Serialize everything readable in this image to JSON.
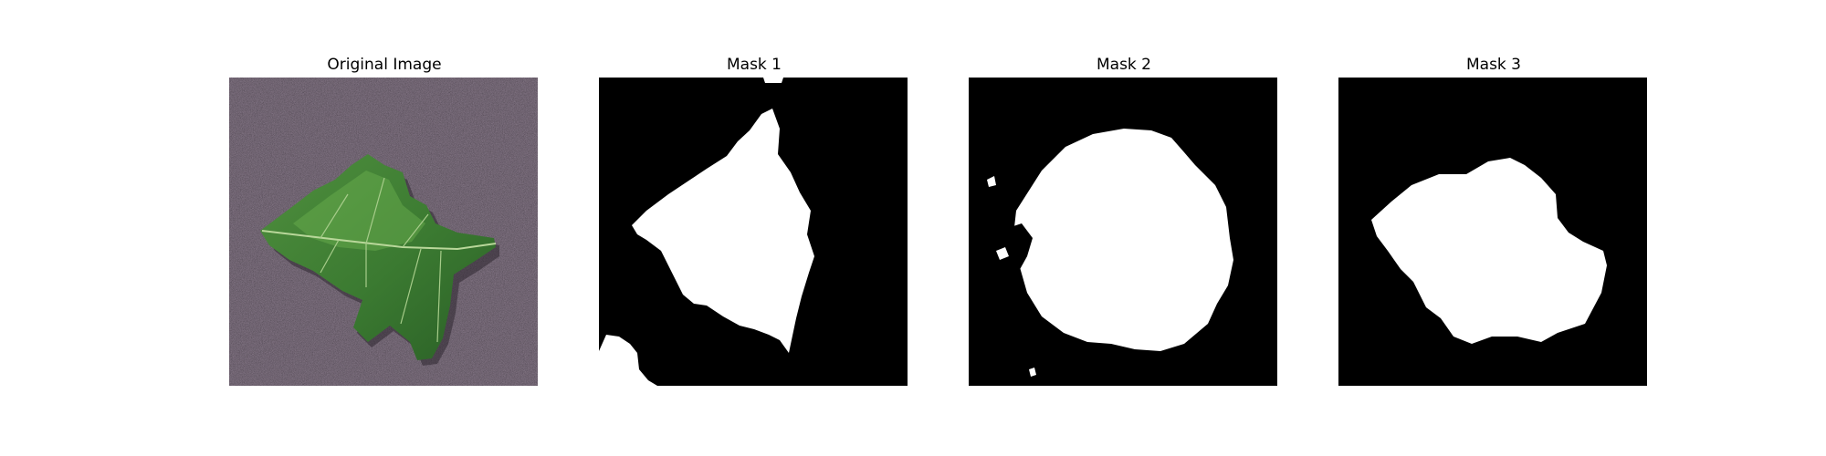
{
  "figure": {
    "panels": [
      {
        "title": "Original Image",
        "kind": "photo"
      },
      {
        "title": "Mask 1",
        "kind": "mask"
      },
      {
        "title": "Mask 2",
        "kind": "mask"
      },
      {
        "title": "Mask 3",
        "kind": "mask"
      }
    ],
    "colors": {
      "background": "#ffffff",
      "mask_background": "#000000",
      "mask_foreground": "#ffffff",
      "photo_backdrop": "#8f7f90",
      "leaf_dark": "#2f6b2a",
      "leaf_light": "#5fa34a",
      "leaf_vein": "#b9d79a"
    }
  }
}
